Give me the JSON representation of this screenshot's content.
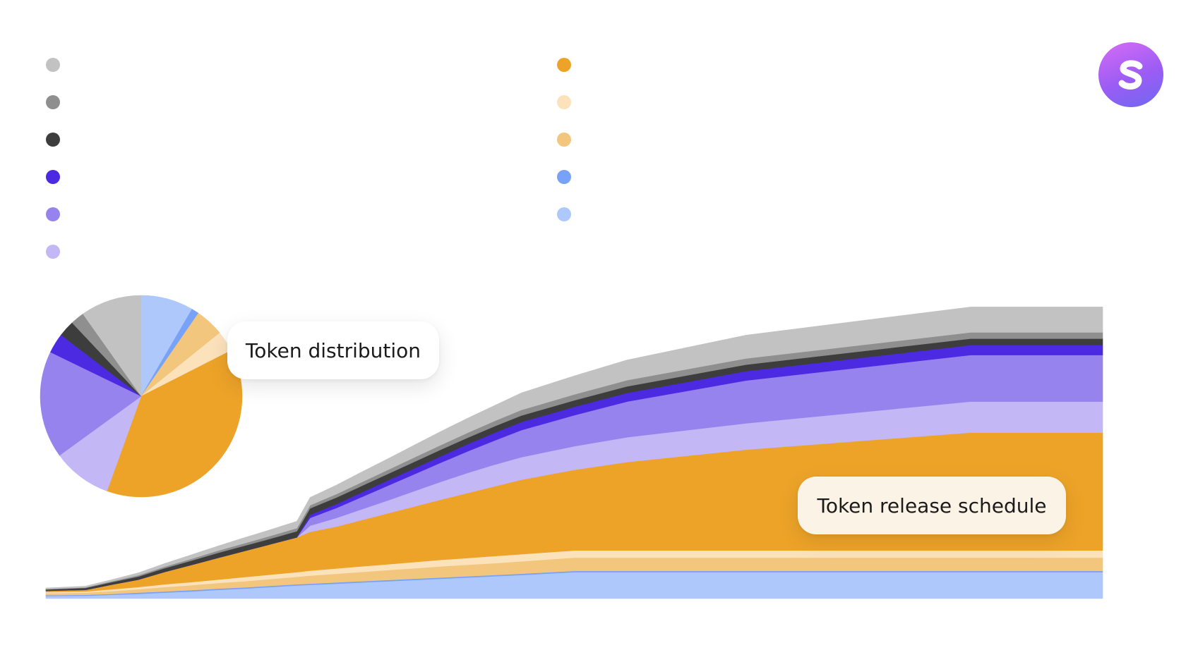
{
  "labels": {
    "distribution": "Token distribution",
    "release_schedule": "Token release schedule"
  },
  "logo": {
    "icon": "brand-s-logo-icon",
    "gradient": [
      "#d66cf6",
      "#6f68f0"
    ]
  },
  "legend": {
    "left_colors": [
      "#c2c2c2",
      "#8f8f8f",
      "#3d3d3d",
      "#4c2ae2",
      "#9683ee",
      "#c3b7f5"
    ],
    "right_colors": [
      "#eda328",
      "#fbe2bb",
      "#f2c67d",
      "#77a2f8",
      "#aec8fc"
    ]
  },
  "chart_data": [
    {
      "type": "pie",
      "title": "",
      "slices": [
        {
          "color": "#aec8fc",
          "value": 8.4
        },
        {
          "color": "#77a2f8",
          "value": 1.2
        },
        {
          "color": "#f2c67d",
          "value": 4.6
        },
        {
          "color": "#fbe2bb",
          "value": 3.3
        },
        {
          "color": "#eda328",
          "value": 38.0
        },
        {
          "color": "#c3b7f5",
          "value": 9.5
        },
        {
          "color": "#9683ee",
          "value": 17.2
        },
        {
          "color": "#4c2ae2",
          "value": 3.2
        },
        {
          "color": "#3d3d3d",
          "value": 2.6
        },
        {
          "color": "#8f8f8f",
          "value": 2.2
        },
        {
          "color": "#c2c2c2",
          "value": 9.8
        }
      ]
    },
    {
      "type": "area",
      "stacked": true,
      "title": "",
      "xlabel": "",
      "ylabel": "",
      "grid": false,
      "ylim": [
        0,
        100
      ],
      "x": [
        0,
        3,
        5,
        7,
        9,
        11,
        13,
        15,
        17,
        19,
        20,
        22,
        24,
        26,
        28,
        30,
        32,
        34,
        36,
        40,
        44,
        53,
        70,
        80
      ],
      "series": [
        {
          "color": "#aec8fc",
          "values": [
            0.8,
            0.9,
            1.2,
            1.5,
            1.9,
            2.3,
            2.8,
            3.2,
            3.7,
            4.2,
            4.4,
            4.8,
            5.2,
            5.6,
            6.0,
            6.4,
            6.8,
            7.2,
            7.6,
            8.5,
            8.5,
            8.5,
            8.5,
            8.5
          ]
        },
        {
          "color": "#77a2f8",
          "values": [
            0.3,
            0.3,
            0.3,
            0.4,
            0.4,
            0.4,
            0.4,
            0.4,
            0.4,
            0.4,
            0.4,
            0.4,
            0.4,
            0.4,
            0.4,
            0.4,
            0.4,
            0.4,
            0.4,
            0.4,
            0.4,
            0.4,
            0.4,
            0.4
          ]
        },
        {
          "color": "#f2c67d",
          "values": [
            0.6,
            0.7,
            0.9,
            1.1,
            1.4,
            1.6,
            1.8,
            2.0,
            2.2,
            2.4,
            2.6,
            2.8,
            3.0,
            3.2,
            3.4,
            3.6,
            3.7,
            3.8,
            4.0,
            4.3,
            4.3,
            4.3,
            4.3,
            4.3
          ]
        },
        {
          "color": "#fbe2bb",
          "values": [
            0.4,
            0.4,
            0.6,
            0.7,
            0.9,
            1.0,
            1.1,
            1.3,
            1.4,
            1.5,
            1.6,
            1.7,
            1.8,
            1.9,
            2.0,
            2.1,
            2.2,
            2.3,
            2.3,
            2.3,
            2.3,
            2.3,
            2.3,
            2.3
          ]
        },
        {
          "color": "#eda328",
          "values": [
            0.4,
            0.5,
            1.5,
            2.4,
            4.0,
            5.5,
            7.0,
            8.4,
            9.8,
            11.2,
            12.5,
            13.5,
            15.0,
            16.5,
            18.0,
            19.5,
            21.0,
            22.5,
            24.0,
            26.0,
            28.5,
            32.5,
            38.0,
            38.0
          ]
        },
        {
          "color": "#c3b7f5",
          "values": [
            0,
            0,
            0,
            0,
            0,
            0,
            0,
            0,
            0,
            0,
            2.0,
            2.8,
            3.5,
            4.2,
            5.0,
            5.8,
            6.5,
            7.0,
            7.3,
            7.6,
            8.0,
            8.5,
            10.0,
            10.0
          ]
        },
        {
          "color": "#9683ee",
          "values": [
            0,
            0,
            0,
            0,
            0,
            0,
            0,
            0,
            0,
            0,
            2.5,
            3.2,
            4.0,
            4.8,
            5.5,
            6.2,
            7.0,
            7.8,
            8.7,
            10.0,
            11.5,
            13.8,
            15.0,
            15.0
          ]
        },
        {
          "color": "#4c2ae2",
          "values": [
            0,
            0,
            0,
            0,
            0,
            0,
            0,
            0,
            0,
            0,
            1.0,
            1.3,
            1.5,
            1.7,
            1.9,
            2.1,
            2.3,
            2.5,
            2.6,
            2.7,
            2.8,
            3.0,
            3.2,
            3.2
          ]
        },
        {
          "color": "#3d3d3d",
          "values": [
            0.4,
            0.6,
            0.8,
            1.0,
            1.2,
            1.4,
            1.6,
            1.7,
            1.8,
            2.0,
            2.1,
            2.1,
            2.1,
            2.1,
            2.1,
            2.1,
            2.1,
            2.1,
            2.1,
            2.1,
            2.1,
            2.1,
            2.1,
            2.1
          ]
        },
        {
          "color": "#8f8f8f",
          "values": [
            0.2,
            0.2,
            0.3,
            0.4,
            0.5,
            0.6,
            0.7,
            0.8,
            0.9,
            1.0,
            1.0,
            1.1,
            1.2,
            1.3,
            1.4,
            1.5,
            1.6,
            1.7,
            1.8,
            1.9,
            2.0,
            2.0,
            2.0,
            2.0
          ]
        },
        {
          "color": "#c2c2c2",
          "values": [
            0.3,
            0.4,
            0.5,
            0.8,
            1.0,
            1.3,
            1.5,
            1.8,
            2.0,
            2.2,
            2.5,
            2.9,
            3.3,
            3.6,
            4.0,
            4.4,
            4.7,
            5.0,
            5.5,
            6.0,
            6.5,
            7.5,
            8.2,
            8.2
          ]
        }
      ]
    }
  ]
}
